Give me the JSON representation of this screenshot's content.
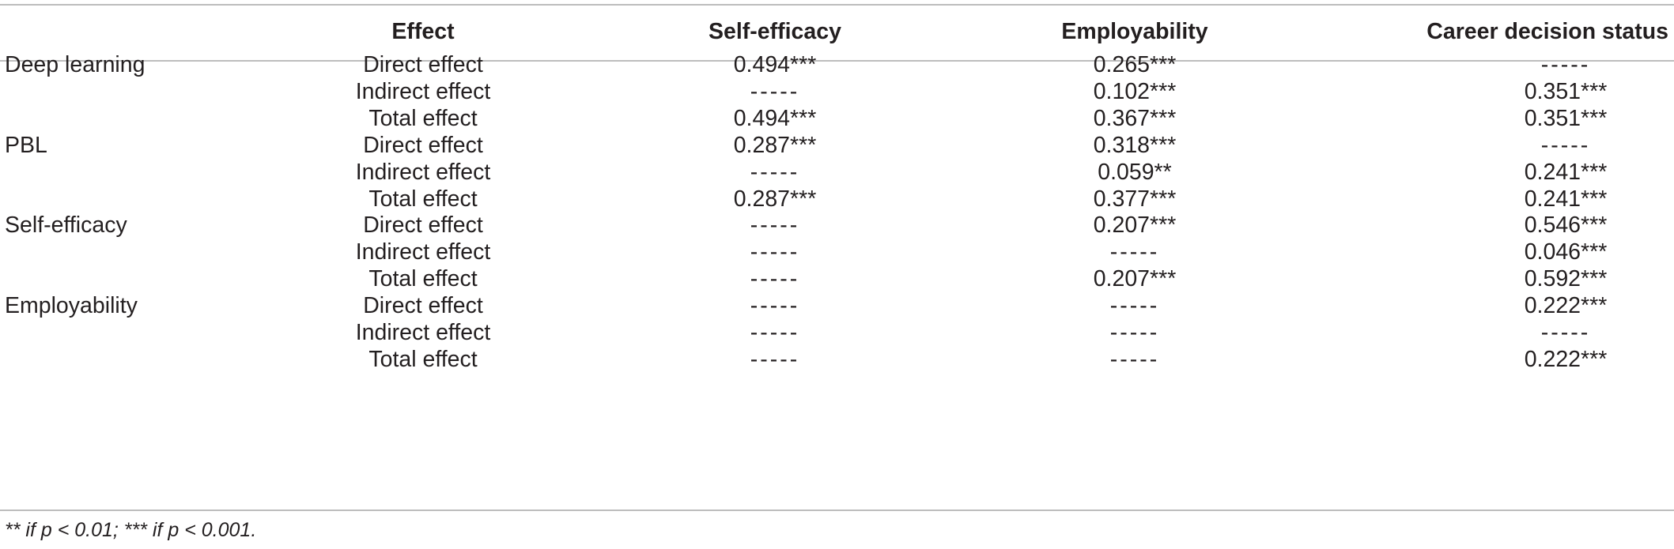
{
  "table": {
    "headers": {
      "label": "",
      "effect": "Effect",
      "self_efficacy": "Self-efficacy",
      "employability": "Employability",
      "career_decision_status": "Career decision status"
    },
    "rows": [
      {
        "label": "Deep learning",
        "effect": "Direct effect",
        "self_efficacy": "0.494***",
        "employability": "0.265***",
        "career_decision_status": "-----"
      },
      {
        "label": "",
        "effect": "Indirect effect",
        "self_efficacy": "-----",
        "employability": "0.102***",
        "career_decision_status": "0.351***"
      },
      {
        "label": "",
        "effect": "Total effect",
        "self_efficacy": "0.494***",
        "employability": "0.367***",
        "career_decision_status": "0.351***"
      },
      {
        "label": "PBL",
        "effect": "Direct effect",
        "self_efficacy": "0.287***",
        "employability": "0.318***",
        "career_decision_status": "-----"
      },
      {
        "label": "",
        "effect": "Indirect effect",
        "self_efficacy": "-----",
        "employability": "0.059**",
        "career_decision_status": "0.241***"
      },
      {
        "label": "",
        "effect": "Total effect",
        "self_efficacy": "0.287***",
        "employability": "0.377***",
        "career_decision_status": "0.241***"
      },
      {
        "label": "Self-efficacy",
        "effect": "Direct effect",
        "self_efficacy": "-----",
        "employability": "0.207***",
        "career_decision_status": "0.546***"
      },
      {
        "label": "",
        "effect": "Indirect effect",
        "self_efficacy": "-----",
        "employability": "-----",
        "career_decision_status": "0.046***"
      },
      {
        "label": "",
        "effect": "Total effect",
        "self_efficacy": "-----",
        "employability": "0.207***",
        "career_decision_status": "0.592***"
      },
      {
        "label": "Employability",
        "effect": "Direct effect",
        "self_efficacy": "-----",
        "employability": "-----",
        "career_decision_status": "0.222***"
      },
      {
        "label": "",
        "effect": "Indirect effect",
        "self_efficacy": "-----",
        "employability": "-----",
        "career_decision_status": "-----"
      },
      {
        "label": "",
        "effect": "Total effect",
        "self_efficacy": "-----",
        "employability": "-----",
        "career_decision_status": "0.222***"
      }
    ]
  },
  "footnote": "** if p < 0.01; *** if p < 0.001."
}
